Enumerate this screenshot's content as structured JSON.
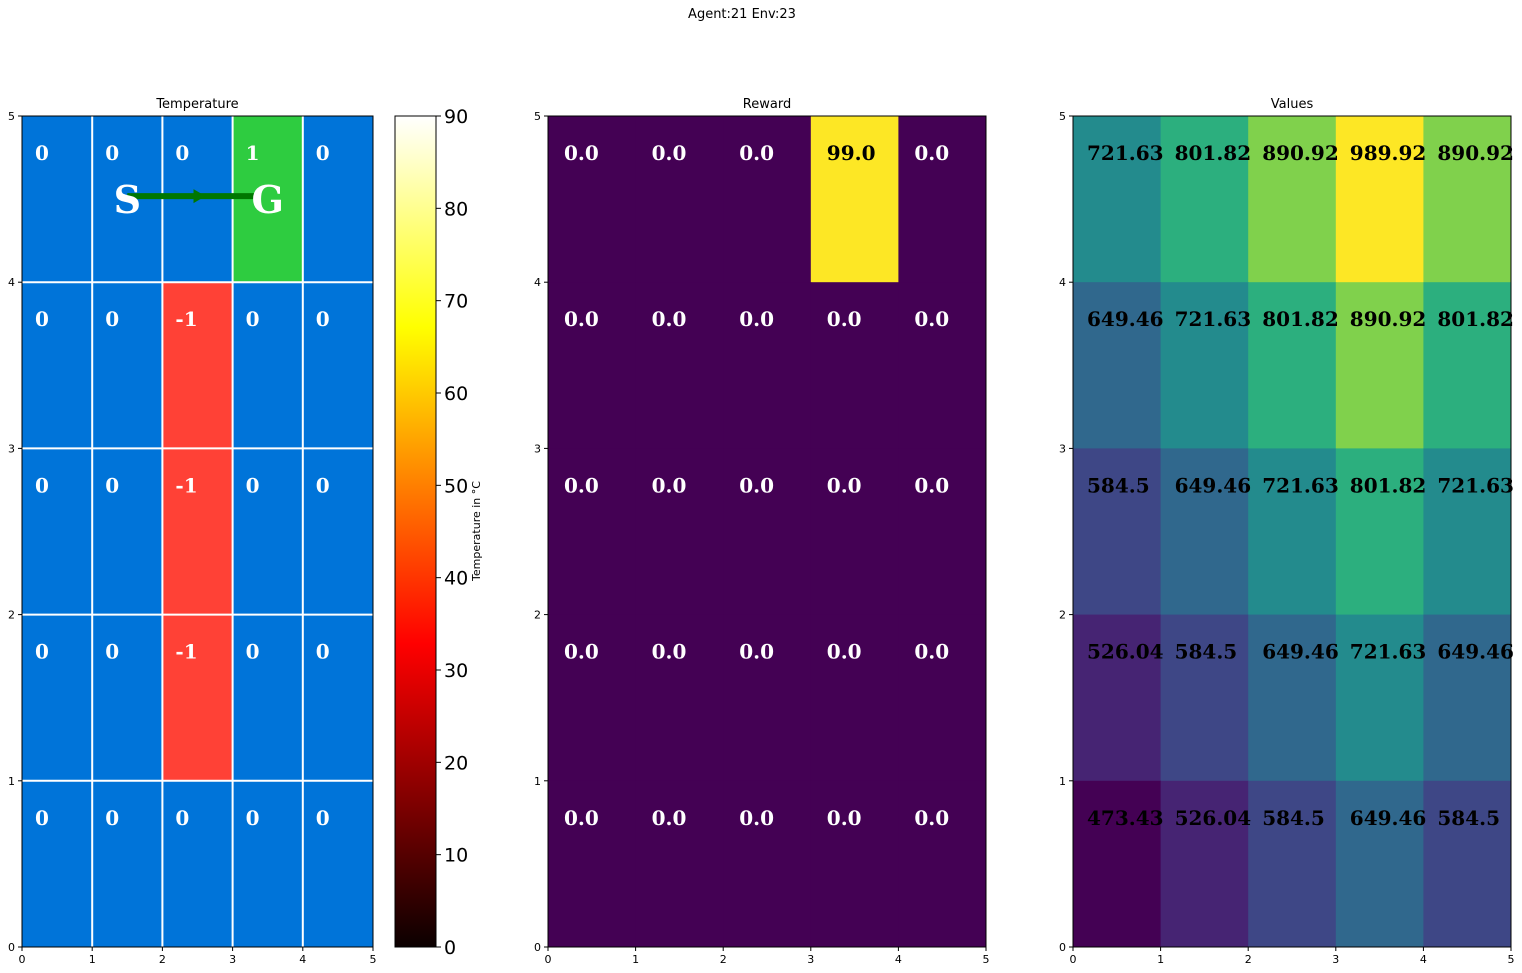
{
  "figure": {
    "suptitle": "Agent:21 Env:23"
  },
  "chart_data": [
    {
      "type": "heatmap",
      "title": "Temperature",
      "xlim": [
        0,
        5
      ],
      "ylim": [
        0,
        5
      ],
      "xticks": [
        "0",
        "1",
        "2",
        "3",
        "4",
        "5"
      ],
      "yticks": [
        "0",
        "1",
        "2",
        "3",
        "4",
        "5"
      ],
      "grid": true,
      "rows_top_to_bottom": [
        [
          "0",
          "0",
          "0",
          "1",
          "0"
        ],
        [
          "0",
          "0",
          "-1",
          "0",
          "0"
        ],
        [
          "0",
          "0",
          "-1",
          "0",
          "0"
        ],
        [
          "0",
          "0",
          "-1",
          "0",
          "0"
        ],
        [
          "0",
          "0",
          "0",
          "0",
          "0"
        ]
      ],
      "colors": {
        "0": "#0074d9",
        "-1": "#ff4136",
        "1": "#2ecc40"
      },
      "markers": {
        "start": "S",
        "goal": "G",
        "start_cell": [
          1,
          4
        ],
        "goal_cell": [
          3,
          4
        ],
        "arrow_color": "#007700"
      },
      "colorbar": {
        "label": "Temperature in $^\\circ$C",
        "range": [
          0,
          90
        ],
        "ticks": [
          "0",
          "10",
          "20",
          "30",
          "40",
          "50",
          "60",
          "70",
          "80",
          "90"
        ],
        "colormap": "hot"
      }
    },
    {
      "type": "heatmap",
      "title": "Reward",
      "xlim": [
        0,
        5
      ],
      "ylim": [
        0,
        5
      ],
      "xticks": [
        "0",
        "1",
        "2",
        "3",
        "4",
        "5"
      ],
      "yticks": [
        "0",
        "1",
        "2",
        "3",
        "4",
        "5"
      ],
      "grid": false,
      "rows_top_to_bottom": [
        [
          "0.0",
          "0.0",
          "0.0",
          "99.0",
          "0.0"
        ],
        [
          "0.0",
          "0.0",
          "0.0",
          "0.0",
          "0.0"
        ],
        [
          "0.0",
          "0.0",
          "0.0",
          "0.0",
          "0.0"
        ],
        [
          "0.0",
          "0.0",
          "0.0",
          "0.0",
          "0.0"
        ],
        [
          "0.0",
          "0.0",
          "0.0",
          "0.0",
          "0.0"
        ]
      ],
      "colormap": "viridis",
      "vmin": 0,
      "vmax": 99
    },
    {
      "type": "heatmap",
      "title": "Values",
      "xlim": [
        0,
        5
      ],
      "ylim": [
        0,
        5
      ],
      "xticks": [
        "0",
        "1",
        "2",
        "3",
        "4",
        "5"
      ],
      "yticks": [
        "0",
        "1",
        "2",
        "3",
        "4",
        "5"
      ],
      "grid": false,
      "rows_top_to_bottom": [
        [
          "721.63",
          "801.82",
          "890.92",
          "989.92",
          "890.92"
        ],
        [
          "649.46",
          "721.63",
          "801.82",
          "890.92",
          "801.82"
        ],
        [
          "584.5",
          "649.46",
          "721.63",
          "801.82",
          "721.63"
        ],
        [
          "526.04",
          "584.5",
          "649.46",
          "721.63",
          "649.46"
        ],
        [
          "473.43",
          "526.04",
          "584.5",
          "649.46",
          "584.5"
        ]
      ],
      "colormap": "viridis",
      "vmin": 473.43,
      "vmax": 989.92
    }
  ]
}
